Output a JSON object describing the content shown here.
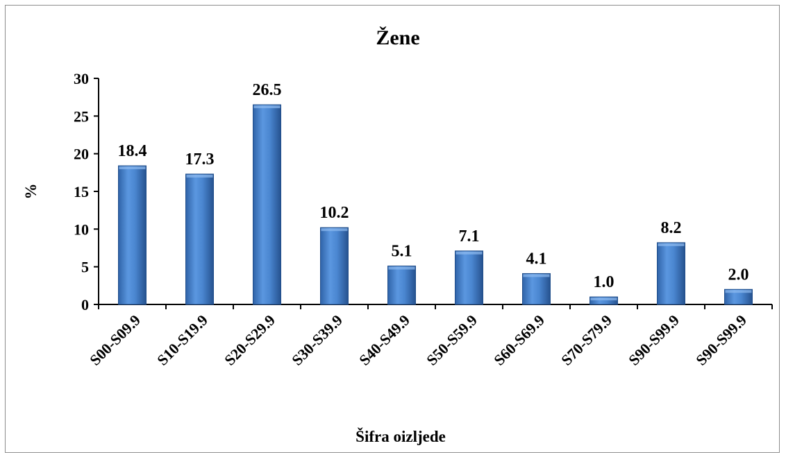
{
  "chart_data": {
    "type": "bar",
    "title": "Žene",
    "xlabel": "Šifra oizljede",
    "ylabel": "%",
    "ylim": [
      0,
      30
    ],
    "yticks": [
      0,
      5,
      10,
      15,
      20,
      25,
      30
    ],
    "categories": [
      "S00-S09.9",
      "S10-S19.9",
      "S20-S29.9",
      "S30-S39.9",
      "S40-S49.9",
      "S50-S59.9",
      "S60-S69.9",
      "S70-S79.9",
      "S90-S99.9",
      "S90-S99.9"
    ],
    "values": [
      18.4,
      17.3,
      26.5,
      10.2,
      5.1,
      7.1,
      4.1,
      1.0,
      8.2,
      2.0
    ],
    "data_labels": [
      "18.4",
      "17.3",
      "26.5",
      "10.2",
      "5.1",
      "7.1",
      "4.1",
      "1.0",
      "8.2",
      "2.0"
    ],
    "bar_color": "#4a86d0",
    "grid": false,
    "legend": "none"
  }
}
